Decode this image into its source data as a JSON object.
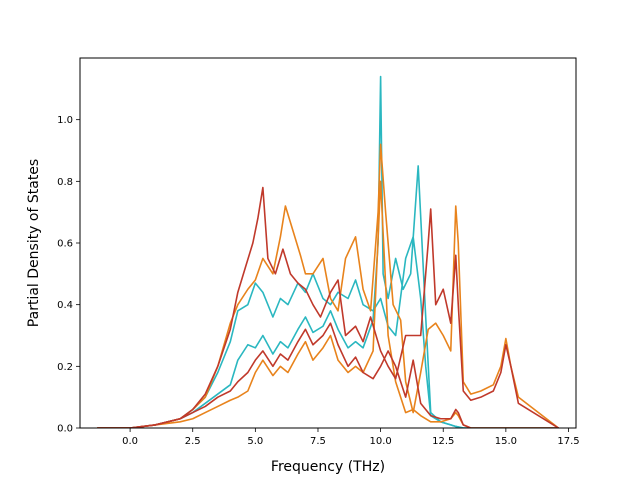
{
  "chart_data": {
    "type": "line",
    "title": "",
    "xlabel": "Frequency (THz)",
    "ylabel": "Partial Density of States",
    "xlim": [
      -2.0,
      17.8
    ],
    "ylim": [
      0.0,
      1.2
    ],
    "xticks": [
      0.0,
      2.5,
      5.0,
      7.5,
      10.0,
      12.5,
      15.0,
      17.5
    ],
    "xtick_labels": [
      "0.0",
      "2.5",
      "5.0",
      "7.5",
      "10.0",
      "12.5",
      "15.0",
      "17.5"
    ],
    "yticks": [
      0.0,
      0.2,
      0.4,
      0.6,
      0.8,
      1.0
    ],
    "ytick_labels": [
      "0.0",
      "0.2",
      "0.4",
      "0.6",
      "0.8",
      "1.0"
    ],
    "grid": false,
    "legend": "none",
    "series": [
      {
        "color": "#2ab7c0",
        "x": [
          -1.3,
          0.0,
          1.0,
          2.0,
          2.5,
          3.0,
          3.5,
          4.0,
          4.3,
          4.7,
          5.0,
          5.3,
          5.7,
          6.0,
          6.3,
          6.7,
          7.0,
          7.3,
          7.7,
          8.0,
          8.3,
          8.7,
          9.0,
          9.3,
          9.7,
          9.9,
          10.0,
          10.1,
          10.3,
          10.6,
          10.9,
          11.2,
          11.5,
          11.8,
          12.0,
          12.4,
          12.8,
          13.0,
          13.3,
          15.0,
          17.1
        ],
        "y": [
          0.0,
          0.0,
          0.01,
          0.03,
          0.05,
          0.08,
          0.11,
          0.14,
          0.22,
          0.27,
          0.26,
          0.3,
          0.24,
          0.28,
          0.26,
          0.32,
          0.36,
          0.31,
          0.33,
          0.38,
          0.32,
          0.26,
          0.28,
          0.26,
          0.35,
          0.6,
          1.14,
          0.5,
          0.42,
          0.55,
          0.45,
          0.5,
          0.85,
          0.36,
          0.05,
          0.02,
          0.01,
          0.005,
          0.0,
          0.0,
          0.0
        ]
      },
      {
        "color": "#2ab7c0",
        "x": [
          -1.3,
          0.0,
          1.0,
          2.0,
          2.5,
          3.0,
          3.5,
          4.0,
          4.3,
          4.7,
          5.0,
          5.3,
          5.7,
          6.0,
          6.3,
          6.7,
          7.0,
          7.3,
          7.7,
          8.0,
          8.3,
          8.7,
          9.0,
          9.3,
          9.7,
          10.0,
          10.3,
          10.6,
          11.0,
          11.3,
          11.6,
          11.8,
          12.0,
          12.4,
          12.8,
          13.0,
          13.3,
          15.0,
          17.1
        ],
        "y": [
          0.0,
          0.0,
          0.01,
          0.03,
          0.06,
          0.1,
          0.18,
          0.28,
          0.38,
          0.4,
          0.47,
          0.44,
          0.36,
          0.42,
          0.4,
          0.47,
          0.44,
          0.5,
          0.42,
          0.4,
          0.44,
          0.42,
          0.48,
          0.4,
          0.38,
          0.42,
          0.33,
          0.3,
          0.55,
          0.62,
          0.42,
          0.2,
          0.04,
          0.02,
          0.01,
          0.005,
          0.0,
          0.0,
          0.0
        ]
      },
      {
        "color": "#e8831c",
        "x": [
          -1.3,
          0.0,
          1.0,
          2.0,
          2.5,
          3.0,
          3.5,
          4.0,
          4.3,
          4.7,
          5.0,
          5.3,
          5.7,
          6.0,
          6.2,
          6.5,
          6.8,
          7.0,
          7.3,
          7.7,
          8.0,
          8.3,
          8.6,
          9.0,
          9.3,
          9.6,
          9.9,
          10.0,
          10.2,
          10.5,
          10.8,
          11.0,
          11.3,
          11.6,
          11.9,
          12.2,
          12.5,
          12.8,
          13.0,
          13.1,
          13.3,
          13.6,
          14.0,
          14.5,
          14.8,
          15.0,
          15.2,
          15.5,
          17.1
        ],
        "y": [
          0.0,
          0.0,
          0.01,
          0.03,
          0.06,
          0.1,
          0.2,
          0.34,
          0.4,
          0.45,
          0.48,
          0.55,
          0.5,
          0.62,
          0.72,
          0.64,
          0.56,
          0.5,
          0.5,
          0.55,
          0.42,
          0.38,
          0.55,
          0.62,
          0.45,
          0.38,
          0.7,
          0.92,
          0.7,
          0.4,
          0.35,
          0.15,
          0.05,
          0.18,
          0.32,
          0.34,
          0.3,
          0.25,
          0.72,
          0.6,
          0.15,
          0.11,
          0.12,
          0.14,
          0.2,
          0.29,
          0.2,
          0.1,
          0.0
        ]
      },
      {
        "color": "#e8831c",
        "x": [
          -1.3,
          0.0,
          1.0,
          2.0,
          2.5,
          3.0,
          3.5,
          4.0,
          4.3,
          4.7,
          5.0,
          5.3,
          5.7,
          6.0,
          6.3,
          6.7,
          7.0,
          7.3,
          7.7,
          8.0,
          8.3,
          8.7,
          9.0,
          9.3,
          9.7,
          10.0,
          10.3,
          10.6,
          11.0,
          11.3,
          11.6,
          12.0,
          12.4,
          12.8,
          13.0,
          13.1,
          13.3,
          13.6,
          14.0,
          14.5,
          14.8,
          15.0,
          15.2,
          15.5,
          17.1
        ],
        "y": [
          0.0,
          0.0,
          0.01,
          0.02,
          0.03,
          0.05,
          0.07,
          0.09,
          0.1,
          0.12,
          0.18,
          0.22,
          0.17,
          0.2,
          0.18,
          0.24,
          0.28,
          0.22,
          0.26,
          0.3,
          0.22,
          0.18,
          0.2,
          0.18,
          0.25,
          0.8,
          0.3,
          0.15,
          0.05,
          0.06,
          0.04,
          0.02,
          0.02,
          0.03,
          0.05,
          0.04,
          0.01,
          0.0,
          0.0,
          0.0,
          0.0,
          0.0,
          0.0,
          0.0,
          0.0
        ]
      },
      {
        "color": "#c0392b",
        "x": [
          -1.3,
          0.0,
          1.0,
          2.0,
          2.5,
          3.0,
          3.5,
          4.0,
          4.3,
          4.6,
          4.9,
          5.1,
          5.3,
          5.5,
          5.8,
          6.1,
          6.4,
          6.7,
          7.0,
          7.3,
          7.6,
          8.0,
          8.3,
          8.6,
          9.0,
          9.3,
          9.6,
          10.0,
          10.3,
          10.6,
          11.0,
          11.3,
          11.6,
          11.9,
          12.0,
          12.2,
          12.5,
          12.8,
          13.0,
          13.1,
          13.3,
          13.6,
          14.0,
          14.5,
          14.8,
          15.0,
          15.2,
          15.5,
          17.1
        ],
        "y": [
          0.0,
          0.0,
          0.01,
          0.03,
          0.06,
          0.11,
          0.2,
          0.32,
          0.44,
          0.52,
          0.6,
          0.68,
          0.78,
          0.55,
          0.5,
          0.58,
          0.5,
          0.47,
          0.45,
          0.4,
          0.36,
          0.44,
          0.48,
          0.3,
          0.33,
          0.28,
          0.36,
          0.25,
          0.2,
          0.16,
          0.3,
          0.3,
          0.3,
          0.6,
          0.71,
          0.4,
          0.45,
          0.34,
          0.56,
          0.4,
          0.12,
          0.09,
          0.1,
          0.12,
          0.18,
          0.27,
          0.2,
          0.08,
          0.0
        ]
      },
      {
        "color": "#c0392b",
        "x": [
          -1.3,
          0.0,
          1.0,
          2.0,
          2.5,
          3.0,
          3.5,
          4.0,
          4.3,
          4.7,
          5.0,
          5.3,
          5.7,
          6.0,
          6.3,
          6.7,
          7.0,
          7.3,
          7.7,
          8.0,
          8.3,
          8.7,
          9.0,
          9.3,
          9.7,
          10.0,
          10.3,
          10.6,
          11.0,
          11.3,
          11.6,
          12.0,
          12.4,
          12.8,
          13.0,
          13.1,
          13.3,
          13.6,
          14.0,
          15.0,
          17.1
        ],
        "y": [
          0.0,
          0.0,
          0.01,
          0.03,
          0.05,
          0.07,
          0.1,
          0.12,
          0.15,
          0.18,
          0.22,
          0.25,
          0.2,
          0.24,
          0.22,
          0.28,
          0.32,
          0.27,
          0.3,
          0.34,
          0.27,
          0.2,
          0.23,
          0.18,
          0.16,
          0.2,
          0.25,
          0.2,
          0.1,
          0.22,
          0.08,
          0.04,
          0.03,
          0.03,
          0.06,
          0.05,
          0.01,
          0.0,
          0.0,
          0.0,
          0.0
        ]
      }
    ]
  }
}
